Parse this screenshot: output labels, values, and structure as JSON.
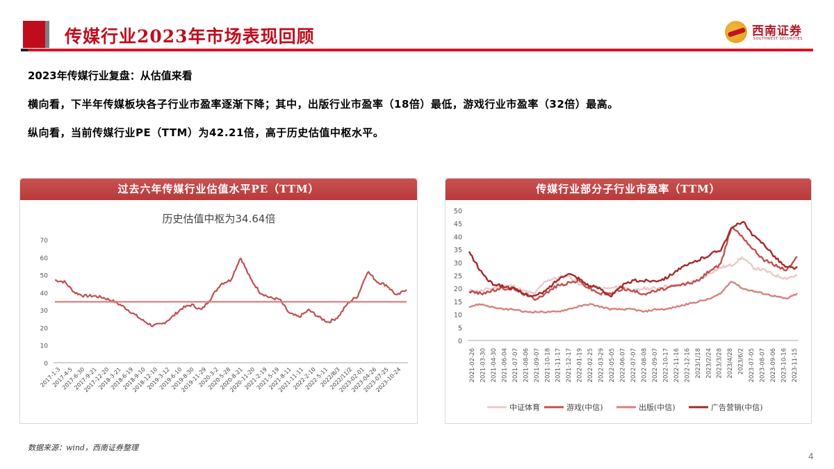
{
  "header": {
    "title": "传媒行业2023年市场表现回顾",
    "accent_color": "#c00d1e"
  },
  "logo": {
    "name_cn": "西南证券",
    "name_en": "SOUTHWEST SECURITIES"
  },
  "content": {
    "subtitle": "2023年传媒行业复盘：从估值来看",
    "paragraph_1": "横向看，下半年传媒板块各子行业市盈率逐渐下降；其中，出版行业市盈率（18倍）最低，游戏行业市盈率（32倍）最高。",
    "paragraph_2": "纵向看，当前传媒行业PE（TTM）为42.21倍，高于历史估值中枢水平。"
  },
  "footnote": "数据来源：wind，西南证券整理",
  "page_number": "4",
  "chart_data": [
    {
      "type": "line",
      "title": "过去六年传媒行业估值水平PE（TTM）",
      "annotation": "历史估值中枢为34.64倍",
      "ylim": [
        0,
        70
      ],
      "yticks": [
        "0",
        "10",
        "20",
        "30",
        "40",
        "50",
        "60",
        "70"
      ],
      "grid": false,
      "categories": [
        "2017-1-3",
        "2017-4-5",
        "2017-6-30",
        "2017-9-21",
        "2017-12-20",
        "2018-3-21",
        "2018-6-19",
        "2018-9-10",
        "2018-12-10",
        "2019-3-12",
        "2019-6-10",
        "2019-8-30",
        "2019-11-29",
        "2020-3-2",
        "2020-5-28",
        "2020-8-21",
        "2020-11-20",
        "2021-2-19",
        "2021-5-19",
        "2021-8-11",
        "2021-11-11",
        "2022-2-10",
        "2022-5-11",
        "2022/8/3",
        "2022/11/2",
        "2023-02-01",
        "2023-04-26",
        "2023-07-25",
        "2023-10-24"
      ],
      "series": [
        {
          "name": "PE(TTM)",
          "color": "#c0504d",
          "values": [
            47,
            46,
            40,
            38,
            38,
            37,
            35,
            32,
            28,
            24,
            21,
            22,
            26,
            31,
            33,
            30,
            37,
            45,
            47,
            60,
            48,
            40,
            37,
            36,
            28,
            26,
            30,
            26,
            23,
            26,
            34,
            38,
            52,
            46,
            44,
            38,
            42
          ]
        },
        {
          "name": "历史估值中枢",
          "color": "#d88080",
          "values": [
            34.64
          ]
        }
      ],
      "x_positions_note": "series sampled evenly across the x range"
    },
    {
      "type": "line",
      "title": "传媒行业部分子行业市盈率（TTM）",
      "ylim": [
        0,
        50
      ],
      "yticks": [
        "0",
        "5",
        "10",
        "15",
        "20",
        "25",
        "30",
        "35",
        "40",
        "45",
        "50"
      ],
      "grid": false,
      "legend_position": "bottom",
      "categories": [
        "2021-02-26",
        "2021-03-30",
        "2021-04-30",
        "2021-06-04",
        "2021-07-07",
        "2021-08-06",
        "2021-09-07",
        "2021-10-18",
        "2021-11-17",
        "2021-12-17",
        "2022-01-19",
        "2022-02-25",
        "2022-03-29",
        "2022-05-05",
        "2022-06-07",
        "2022-07-07",
        "2022-08-08",
        "2022-09-07",
        "2022-10-17",
        "2022-11-16",
        "2022-12-16",
        "2023/1/18",
        "2023/2/24",
        "2023/3/28",
        "2023/4/28",
        "2023/6/2",
        "2023-07-05",
        "2023-08-07",
        "2023-09-06",
        "2023-10-16",
        "2023-11-15"
      ],
      "series": [
        {
          "name": "中证体育",
          "color": "#ecc9c9",
          "values": [
            19,
            19,
            20,
            21,
            21,
            19,
            18,
            23,
            24,
            25,
            22,
            21,
            20,
            20,
            21,
            19,
            20,
            20,
            21,
            21,
            22,
            23,
            26,
            28,
            29,
            32,
            28,
            27,
            25,
            24,
            25
          ]
        },
        {
          "name": "游戏(中信)",
          "color": "#c0504d",
          "values": [
            19,
            18,
            19,
            20,
            20,
            18,
            16,
            18,
            21,
            22,
            23,
            20,
            18,
            18,
            20,
            19,
            18,
            19,
            20,
            21,
            22,
            23,
            27,
            29,
            44,
            40,
            35,
            31,
            29,
            27,
            32
          ]
        },
        {
          "name": "出版(中信)",
          "color": "#d98080",
          "values": [
            13,
            14,
            13,
            12,
            12,
            11,
            11,
            11,
            11,
            12,
            13,
            14,
            13,
            12,
            12,
            12,
            11,
            12,
            12,
            13,
            14,
            15,
            16,
            18,
            23,
            20,
            19,
            18,
            17,
            16,
            18
          ]
        },
        {
          "name": "广告营销(中信)",
          "color": "#a52a2a",
          "values": [
            34,
            27,
            22,
            21,
            20,
            18,
            17,
            19,
            23,
            26,
            24,
            21,
            20,
            17,
            21,
            23,
            23,
            23,
            24,
            27,
            29,
            31,
            33,
            35,
            43,
            46,
            40,
            37,
            32,
            28,
            28
          ]
        }
      ]
    }
  ]
}
